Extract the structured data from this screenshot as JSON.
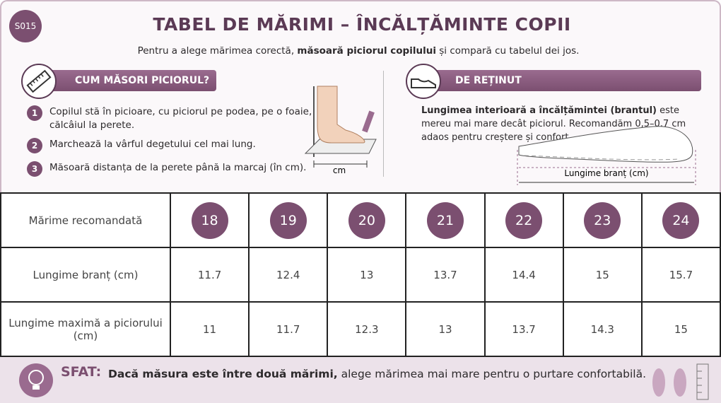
{
  "badge": "S015",
  "header": {
    "title": "TABEL DE MĂRIMI – ÎNCĂLȚĂMINTE COPII",
    "subtitle": [
      "Pentru a alege mărimea corectă, ",
      "măsoară piciorul copilului",
      " și compară cu tabelul dei jos."
    ]
  },
  "measure": {
    "heading": "CUM MĂSORI PICIORUL?",
    "steps": [
      {
        "number": "1",
        "text": "Copilul stă în picioare, cu piciorul pe podea, pe o foaie, călcâiul la perete."
      },
      {
        "number": "2",
        "text": "Marchează la vârful degetului cel mai lung."
      },
      {
        "number": "3",
        "text": "Măsoară distanța de la perete până la marcaj (în cm)."
      }
    ],
    "diagram_label": "cm"
  },
  "note": {
    "heading": "DE REȚINUT",
    "text": [
      "Lungimea interioară a încălțămintei (brantul)",
      " este mereu mai mare decât piciorul. Recomandăm 0,5–0,7 cm adaos pentru creștere și confort."
    ],
    "diagram_label": "Lungime branț (cm)"
  },
  "table": {
    "rows": [
      [
        "Mărime recomandată",
        18,
        19,
        20,
        21,
        22,
        23,
        24
      ],
      [
        "Lungime branț (cm)",
        11.7,
        12.4,
        13,
        13.7,
        14.4,
        15,
        15.7
      ],
      [
        "Lungime maximă a piciorului (cm)",
        11,
        11.7,
        12.3,
        13,
        13.7,
        14.3,
        15
      ]
    ]
  },
  "tip": {
    "label": "SFAT:",
    "text": [
      "Dacă măsura este între două mărimi,",
      " alege mărimea mai mare pentru o purtare confortabilă."
    ]
  }
}
